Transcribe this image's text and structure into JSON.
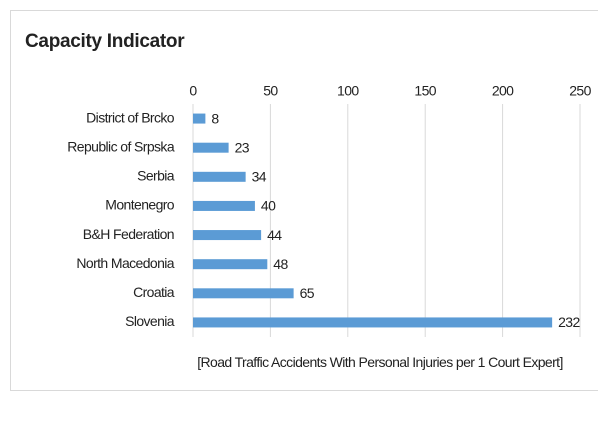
{
  "chart_data": {
    "type": "bar",
    "orientation": "horizontal",
    "title": "Capacity Indicator",
    "categories": [
      "District of Brcko",
      "Republic of Srpska",
      "Serbia",
      "Montenegro",
      "B&H Federation",
      "North Macedonia",
      "Croatia",
      "Slovenia"
    ],
    "values": [
      8,
      23,
      34,
      40,
      44,
      48,
      65,
      232
    ],
    "color": "#5b9bd5",
    "xlabel": "[Road Traffic Accidents With Personal Injuries per 1 Court Expert]",
    "xlim": [
      0,
      250
    ],
    "xticks": [
      0,
      50,
      100,
      150,
      200,
      250
    ],
    "grid": true
  }
}
